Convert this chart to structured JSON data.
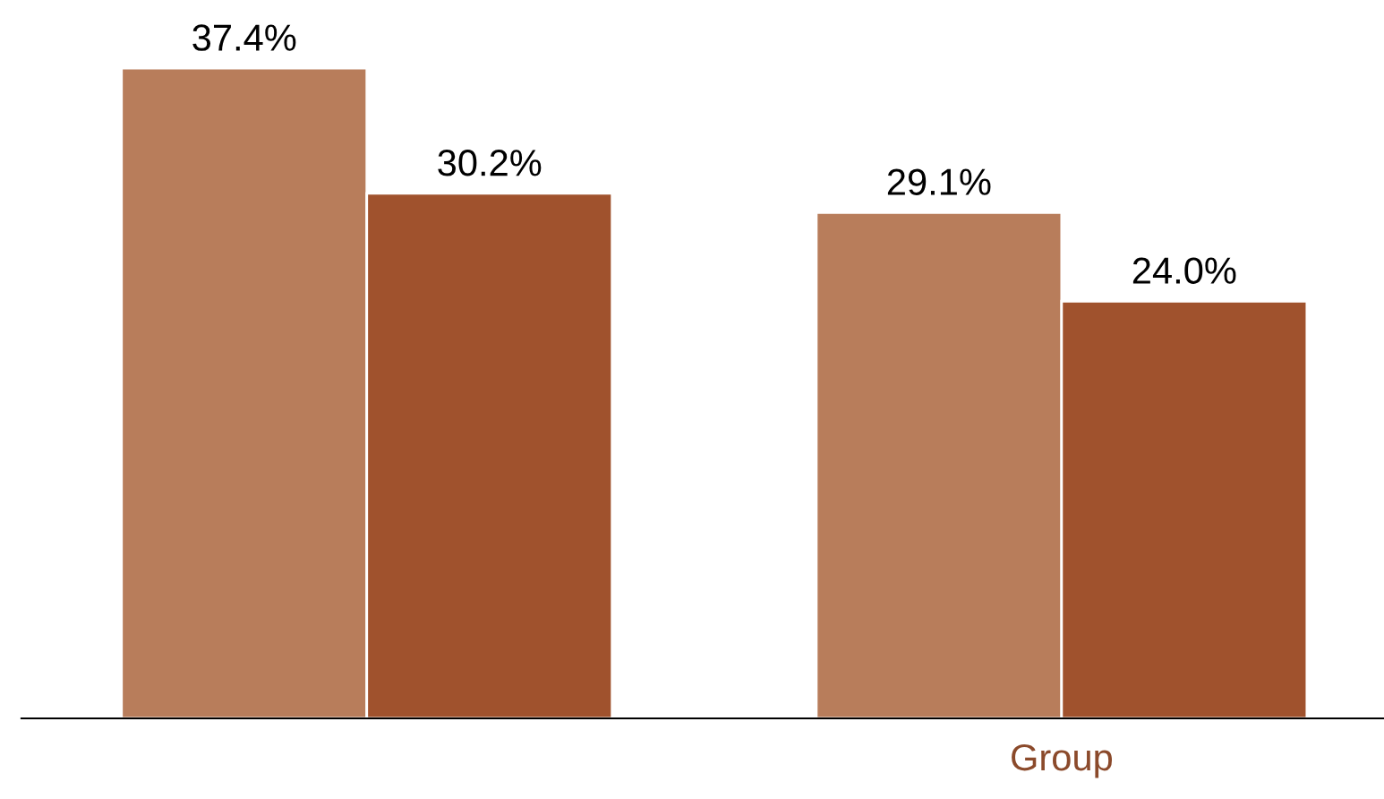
{
  "chart_data": {
    "type": "bar",
    "categories": [
      null,
      "Group"
    ],
    "series": [
      {
        "color": "#b87d5b",
        "values": [
          37.4,
          29.1
        ],
        "value_labels": [
          "37.4%",
          "29.1%"
        ]
      },
      {
        "color": "#a0522d",
        "values": [
          30.2,
          24.0
        ],
        "value_labels": [
          "30.2%",
          "24.0%"
        ]
      }
    ],
    "grid": false,
    "legend": false
  }
}
